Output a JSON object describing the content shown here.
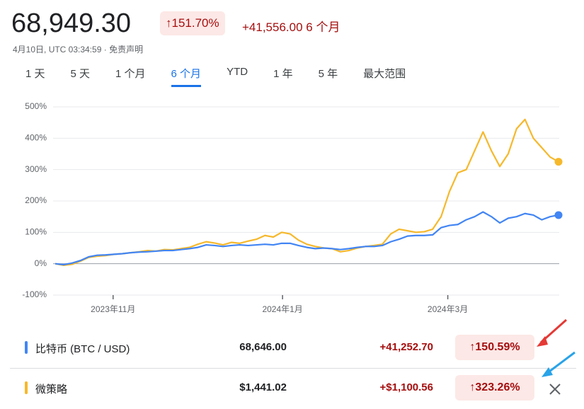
{
  "header": {
    "price": "68,949.30",
    "change_percent": "↑151.70%",
    "change": "+41,556.00",
    "period": "6 个月",
    "timestamp": "4月10日, UTC 03:34:59 ·",
    "disclaimer": "免责声明"
  },
  "tabs": {
    "items": [
      "1 天",
      "5 天",
      "1 个月",
      "6 个月",
      "YTD",
      "1 年",
      "5 年",
      "最大范围"
    ],
    "active": 3
  },
  "chart_data": {
    "type": "line",
    "xlim": [
      0,
      60
    ],
    "xticks": [
      {
        "value": 6.9,
        "label": "2023年11月"
      },
      {
        "value": 27.1,
        "label": "2024年1月"
      },
      {
        "value": 46.8,
        "label": "2024年3月"
      }
    ],
    "ylim": [
      -100,
      500
    ],
    "yticks": [
      {
        "value": -100,
        "label": "-100%"
      },
      {
        "value": 0,
        "label": "0%"
      },
      {
        "value": 100,
        "label": "100%"
      },
      {
        "value": 200,
        "label": "200%"
      },
      {
        "value": 300,
        "label": "300%"
      },
      {
        "value": 400,
        "label": "400%"
      },
      {
        "value": 500,
        "label": "500%"
      }
    ],
    "grid": true,
    "series": [
      {
        "name": "比特币 (BTC / USD)",
        "color": "#4285f4",
        "values": [
          0,
          -3,
          2,
          10,
          22,
          27,
          28,
          30,
          32,
          35,
          37,
          38,
          40,
          42,
          42,
          45,
          48,
          52,
          60,
          58,
          55,
          58,
          60,
          58,
          60,
          62,
          60,
          65,
          65,
          58,
          52,
          48,
          50,
          48,
          45,
          48,
          52,
          55,
          55,
          58,
          70,
          78,
          88,
          90,
          90,
          92,
          115,
          122,
          125,
          140,
          150,
          165,
          150,
          130,
          145,
          150,
          160,
          155,
          140,
          150,
          155
        ]
      },
      {
        "name": "微策略",
        "color": "#f6b82b",
        "values": [
          0,
          -5,
          -2,
          8,
          20,
          24,
          26,
          30,
          32,
          35,
          38,
          42,
          40,
          45,
          44,
          48,
          52,
          62,
          70,
          66,
          60,
          68,
          65,
          72,
          78,
          90,
          85,
          100,
          95,
          75,
          62,
          55,
          50,
          48,
          38,
          42,
          50,
          55,
          58,
          62,
          95,
          110,
          105,
          100,
          102,
          110,
          150,
          230,
          290,
          300,
          360,
          420,
          360,
          310,
          350,
          430,
          460,
          400,
          370,
          340,
          325
        ]
      }
    ]
  },
  "rows": [
    {
      "price": "68,646.00",
      "change": "+41,252.70",
      "percent": "↑150.59%"
    },
    {
      "price": "$1,441.02",
      "change": "+$1,100.56",
      "percent": "↑323.26%"
    }
  ]
}
